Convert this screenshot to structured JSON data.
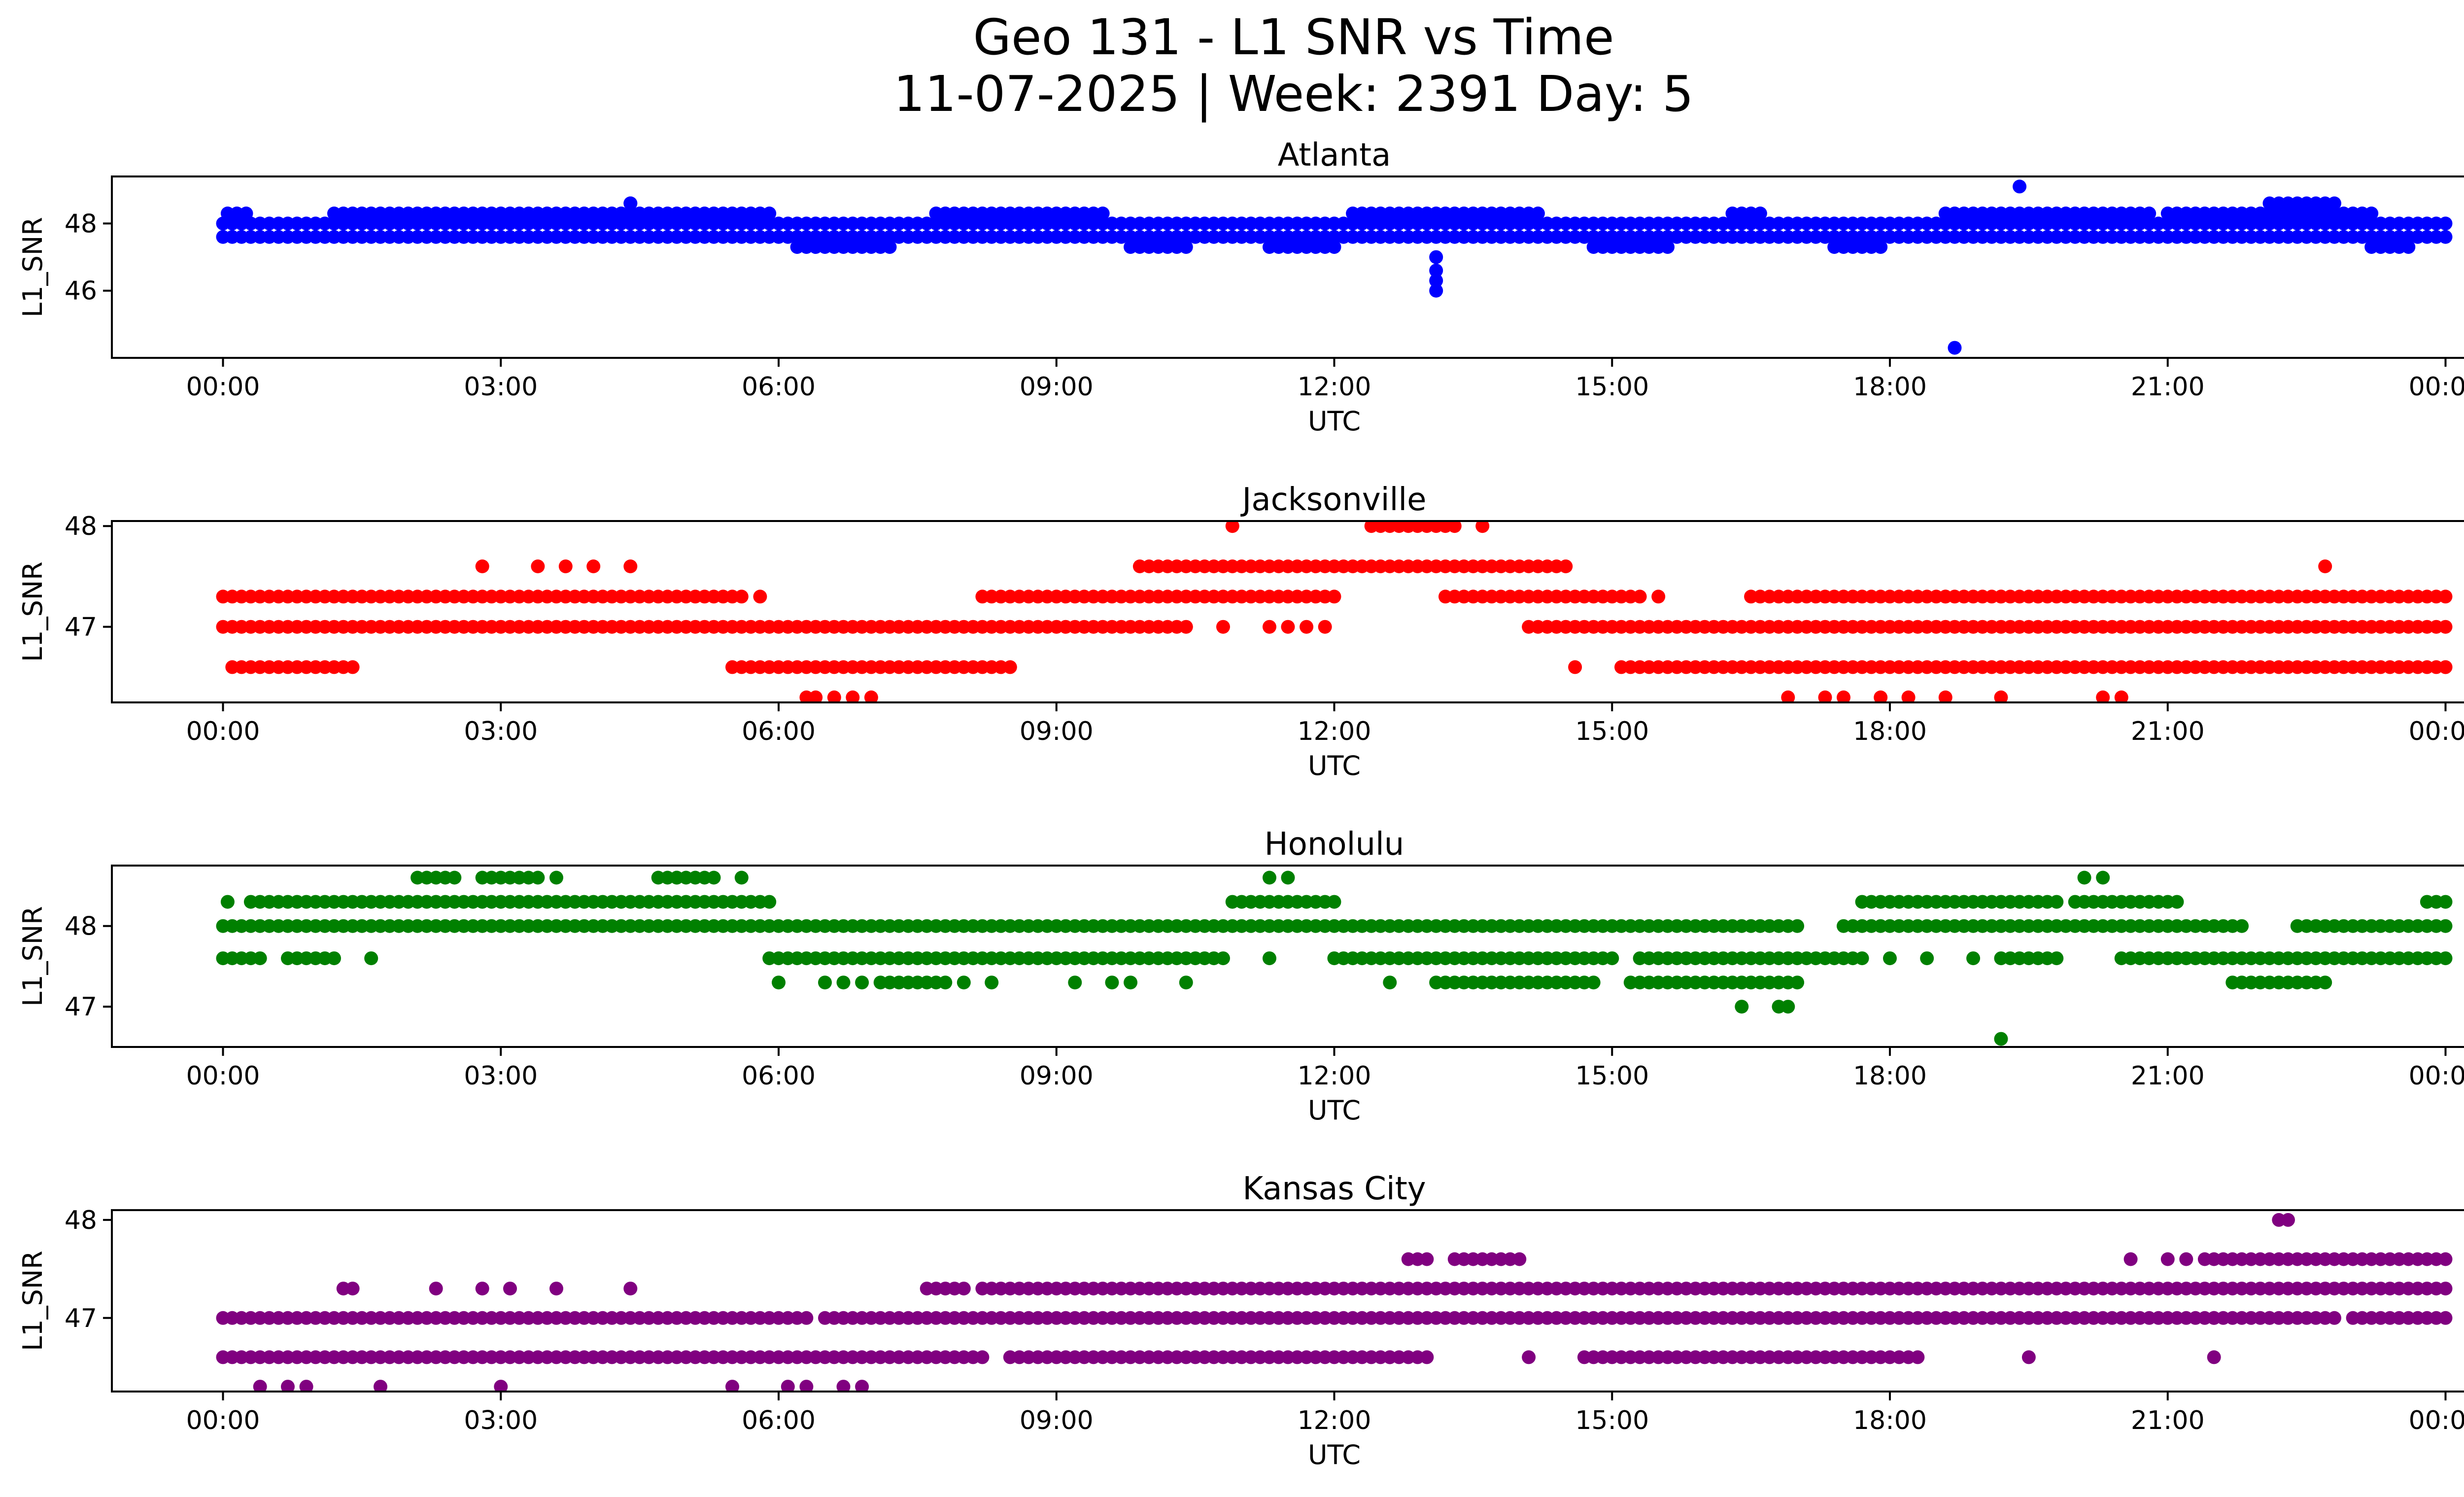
{
  "chart_data": {
    "type": "scatter",
    "title": "Geo 131 - L1 SNR vs Time",
    "subtitle": "11-07-2025 | Week: 2391 Day: 5",
    "xlabel": "UTC",
    "ylabel": "L1_SNR",
    "x_ticks": [
      "00:00",
      "03:00",
      "06:00",
      "09:00",
      "12:00",
      "15:00",
      "18:00",
      "21:00",
      "00:00"
    ],
    "x_range_hours": [
      -1.2,
      25.2
    ],
    "panels": [
      {
        "title": "Atlanta",
        "color": "#0000ff",
        "ylim": [
          44.0,
          49.4
        ],
        "yticks": [
          46,
          48
        ],
        "series": [
          {
            "level": 47.6,
            "segments": [
              [
                0.0,
                24.0
              ]
            ]
          },
          {
            "level": 48.0,
            "segments": [
              [
                0.0,
                24.0
              ]
            ]
          },
          {
            "level": 48.3,
            "segments": [
              [
                0.05,
                0.25
              ],
              [
                1.2,
                5.9
              ],
              [
                7.7,
                9.5
              ],
              [
                12.2,
                14.2
              ],
              [
                16.3,
                16.6
              ],
              [
                18.6,
                20.8
              ],
              [
                21.0,
                22.5
              ],
              [
                22.6,
                23.2
              ]
            ]
          },
          {
            "level": 48.6,
            "segments": [
              [
                4.4,
                4.4
              ],
              [
                22.1,
                22.8
              ]
            ]
          },
          {
            "level": 47.3,
            "segments": [
              [
                6.2,
                7.2
              ],
              [
                9.8,
                10.4
              ],
              [
                11.3,
                12.0
              ],
              [
                14.8,
                15.6
              ],
              [
                17.4,
                17.9
              ],
              [
                23.2,
                23.6
              ]
            ]
          },
          {
            "level": 49.1,
            "points": [
              19.4
            ]
          },
          {
            "level": 44.3,
            "points": [
              18.7
            ]
          },
          {
            "level": 46.0,
            "points": [
              13.1
            ]
          },
          {
            "level": 46.3,
            "points": [
              13.1
            ]
          },
          {
            "level": 46.6,
            "points": [
              13.1
            ]
          },
          {
            "level": 47.0,
            "points": [
              13.1
            ]
          }
        ]
      },
      {
        "title": "Jacksonville",
        "color": "#ff0000",
        "ylim": [
          46.25,
          48.05
        ],
        "yticks": [
          47,
          48
        ],
        "series": [
          {
            "level": 47.0,
            "segments": [
              [
                0.0,
                10.4
              ],
              [
                14.1,
                24.0
              ]
            ],
            "points": [
              10.8,
              11.3,
              11.5,
              11.7,
              11.9
            ]
          },
          {
            "level": 47.3,
            "segments": [
              [
                0.0,
                5.6
              ],
              [
                8.2,
                12.0
              ],
              [
                13.2,
                15.3
              ],
              [
                16.5,
                24.0
              ]
            ],
            "points": [
              5.8,
              15.5,
              18.6,
              19.2,
              19.6,
              21.4,
              21.6
            ]
          },
          {
            "level": 46.6,
            "segments": [
              [
                0.1,
                1.4
              ],
              [
                5.5,
                8.5
              ],
              [
                15.1,
                24.0
              ]
            ],
            "points": [
              14.6,
              24.0
            ]
          },
          {
            "level": 47.6,
            "segments": [
              [
                10.0,
                14.5
              ]
            ],
            "points": [
              2.8,
              3.4,
              3.7,
              4.0,
              4.4,
              9.9,
              22.7
            ]
          },
          {
            "level": 48.0,
            "segments": [
              [
                12.4,
                13.3
              ]
            ],
            "points": [
              10.9,
              13.6
            ]
          },
          {
            "level": 46.3,
            "points": [
              6.3,
              6.4,
              6.6,
              6.8,
              7.0,
              16.9,
              17.3,
              17.5,
              17.9,
              18.2,
              18.6,
              19.2,
              20.3,
              20.5
            ]
          }
        ]
      },
      {
        "title": "Honolulu",
        "color": "#008000",
        "ylim": [
          46.5,
          48.75
        ],
        "yticks": [
          47,
          48
        ],
        "series": [
          {
            "level": 48.0,
            "segments": [
              [
                0.0,
                17.0
              ],
              [
                17.5,
                21.8
              ],
              [
                22.4,
                24.0
              ]
            ]
          },
          {
            "level": 48.3,
            "segments": [
              [
                0.3,
                5.9
              ],
              [
                10.9,
                12.0
              ],
              [
                17.7,
                19.8
              ],
              [
                20.0,
                21.1
              ],
              [
                23.8,
                24.0
              ]
            ],
            "points": [
              0.05
            ]
          },
          {
            "level": 47.6,
            "segments": [
              [
                0.0,
                0.4
              ],
              [
                0.7,
                1.2
              ],
              [
                5.9,
                10.8
              ],
              [
                12.0,
                15.0
              ],
              [
                15.3,
                17.7
              ],
              [
                19.2,
                19.8
              ],
              [
                20.5,
                24.0
              ]
            ],
            "points": [
              1.6,
              11.3,
              18.0,
              18.4,
              18.9
            ]
          },
          {
            "level": 48.6,
            "segments": [
              [
                2.1,
                2.5
              ],
              [
                2.8,
                3.4
              ],
              [
                4.7,
                5.3
              ]
            ],
            "points": [
              3.6,
              4.9,
              5.6,
              11.3,
              11.5,
              20.1,
              20.3
            ]
          },
          {
            "level": 47.3,
            "segments": [
              [
                7.1,
                7.8
              ],
              [
                13.1,
                14.8
              ],
              [
                15.2,
                17.0
              ],
              [
                21.7,
                22.7
              ]
            ],
            "points": [
              6.0,
              6.5,
              6.7,
              6.9,
              8.0,
              8.3,
              9.2,
              9.6,
              9.8,
              10.4,
              12.6
            ]
          },
          {
            "level": 47.0,
            "points": [
              16.4,
              16.8,
              16.9
            ]
          },
          {
            "level": 46.6,
            "points": [
              19.2
            ]
          }
        ]
      },
      {
        "title": "Kansas City",
        "color": "#800080",
        "ylim": [
          46.25,
          48.1
        ],
        "yticks": [
          47,
          48
        ],
        "series": [
          {
            "level": 47.0,
            "segments": [
              [
                0.0,
                6.3
              ],
              [
                6.5,
                22.8
              ],
              [
                23.0,
                24.0
              ]
            ],
            "points": [
              21.5,
              22.1
            ]
          },
          {
            "level": 46.6,
            "segments": [
              [
                0.0,
                8.2
              ],
              [
                8.5,
                13.0
              ],
              [
                14.7,
                18.3
              ]
            ],
            "points": [
              12.6,
              14.1,
              19.5,
              21.5
            ]
          },
          {
            "level": 47.3,
            "segments": [
              [
                7.6,
                8.0
              ],
              [
                8.2,
                24.0
              ]
            ],
            "points": [
              1.3,
              1.4,
              2.3,
              2.8,
              3.1,
              3.6,
              4.4
            ]
          },
          {
            "level": 47.6,
            "segments": [
              [
                12.8,
                13.0
              ],
              [
                13.3,
                14.0
              ],
              [
                21.4,
                24.0
              ]
            ],
            "points": [
              20.6,
              21.0,
              21.2
            ]
          },
          {
            "level": 48.0,
            "points": [
              22.2,
              22.3
            ]
          },
          {
            "level": 46.3,
            "points": [
              0.4,
              0.7,
              0.9,
              1.7,
              3.0,
              5.5,
              6.1,
              6.3,
              6.7,
              6.9
            ]
          }
        ]
      }
    ]
  }
}
